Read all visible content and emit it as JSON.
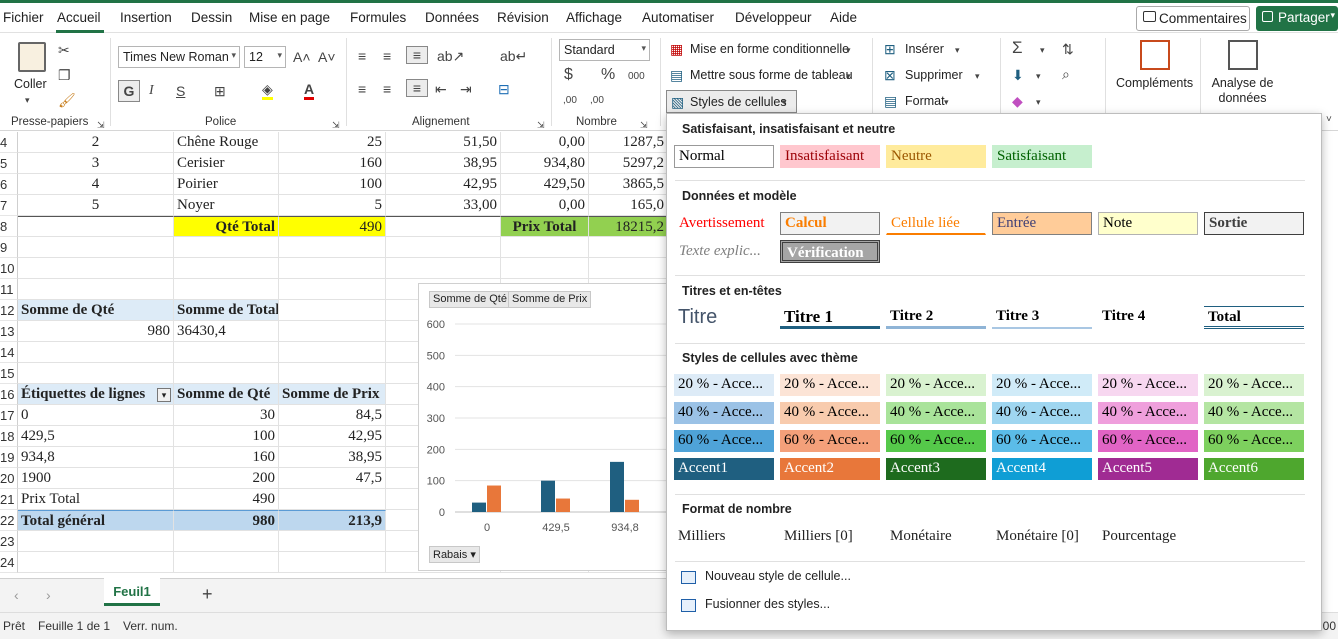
{
  "menubar": {
    "items": [
      "Fichier",
      "Accueil",
      "Insertion",
      "Dessin",
      "Mise en page",
      "Formules",
      "Données",
      "Révision",
      "Affichage",
      "Automatiser",
      "Développeur",
      "Aide"
    ],
    "comments_label": "Commentaires",
    "share_label": "Partager"
  },
  "ribbon": {
    "clipboard": {
      "paste_label": "Coller",
      "group_label": "Presse-papiers"
    },
    "font": {
      "name": "Times New Roman",
      "size": "12",
      "group_label": "Police",
      "bold": "G",
      "italic": "I",
      "underline": "S"
    },
    "alignment": {
      "group_label": "Alignement"
    },
    "number": {
      "format": "Standard",
      "group_label": "Nombre"
    },
    "styles": {
      "conditional": "Mise en forme conditionnelle",
      "as_table": "Mettre sous forme de tableau",
      "cell_styles": "Styles de cellules"
    },
    "cells": {
      "insert": "Insérer",
      "delete": "Supprimer",
      "format": "Format"
    },
    "addins": "Compléments",
    "analyze": "Analyse de données"
  },
  "sheet": {
    "rows": [
      {
        "num": "4",
        "cells": [
          "2",
          "Chêne Rouge",
          "25",
          "51,50",
          "0,00",
          "1287,5"
        ]
      },
      {
        "num": "5",
        "cells": [
          "3",
          "Cerisier",
          "160",
          "38,95",
          "934,80",
          "5297,2"
        ]
      },
      {
        "num": "6",
        "cells": [
          "4",
          "Poirier",
          "100",
          "42,95",
          "429,50",
          "3865,5"
        ]
      },
      {
        "num": "7",
        "cells": [
          "5",
          "Noyer",
          "5",
          "33,00",
          "0,00",
          "165,0"
        ]
      },
      {
        "num": "8",
        "cells": [
          "",
          "Qté Total",
          "490",
          "",
          "Prix Total",
          "18215,2"
        ]
      },
      {
        "num": "9",
        "cells": [
          "",
          "",
          "",
          "",
          "",
          ""
        ]
      },
      {
        "num": "10",
        "cells": [
          "",
          "",
          "",
          "",
          "",
          ""
        ]
      },
      {
        "num": "11",
        "cells": [
          "",
          "",
          "",
          "",
          "",
          ""
        ]
      },
      {
        "num": "12",
        "cells": [
          "Somme de Qté",
          "Somme de Total",
          "",
          "",
          "",
          ""
        ]
      },
      {
        "num": "13",
        "cells": [
          "980",
          "36430,4",
          "",
          "",
          "",
          ""
        ]
      },
      {
        "num": "14",
        "cells": [
          "",
          "",
          "",
          "",
          "",
          ""
        ]
      },
      {
        "num": "15",
        "cells": [
          "",
          "",
          "",
          "",
          "",
          ""
        ]
      },
      {
        "num": "16",
        "cells": [
          "Étiquettes de lignes",
          "Somme de Qté",
          "Somme de Prix",
          "",
          "",
          ""
        ]
      },
      {
        "num": "17",
        "cells": [
          "0",
          "30",
          "84,5",
          "",
          "",
          ""
        ]
      },
      {
        "num": "18",
        "cells": [
          "429,5",
          "100",
          "42,95",
          "",
          "",
          ""
        ]
      },
      {
        "num": "19",
        "cells": [
          "934,8",
          "160",
          "38,95",
          "",
          "",
          ""
        ]
      },
      {
        "num": "20",
        "cells": [
          "1900",
          "200",
          "47,5",
          "",
          "",
          ""
        ]
      },
      {
        "num": "21",
        "cells": [
          "Prix Total",
          "490",
          "",
          "",
          "",
          ""
        ]
      },
      {
        "num": "22",
        "cells": [
          "Total général",
          "980",
          "213,9",
          "",
          "",
          ""
        ]
      },
      {
        "num": "23",
        "cells": [
          "",
          "",
          "",
          "",
          "",
          ""
        ]
      },
      {
        "num": "24",
        "cells": [
          "",
          "",
          "",
          "",
          "",
          ""
        ]
      }
    ]
  },
  "chart_data": {
    "type": "bar",
    "categories": [
      "0",
      "429,5",
      "934,8"
    ],
    "series": [
      {
        "name": "Somme de Qté",
        "values": [
          30,
          100,
          160
        ],
        "color": "#1f5f80"
      },
      {
        "name": "Somme de Prix",
        "values": [
          84.5,
          42.95,
          38.95
        ],
        "color": "#e8773a"
      }
    ],
    "ylim": [
      0,
      600
    ],
    "yticks": [
      "600",
      "500",
      "400",
      "300",
      "200",
      "100",
      "0"
    ],
    "chips": [
      "Somme  de Qté",
      "Somme  de Prix"
    ],
    "filter_chip": "Rabais"
  },
  "tabs": {
    "sheet_name": "Feuil1"
  },
  "status": {
    "ready": "Prêt",
    "sheet_of": "Feuille 1 de 1",
    "numlock": "Verr. num.",
    "zoom": ".:00"
  },
  "panel": {
    "sections": [
      {
        "title": "Satisfaisant, insatisfaisant et neutre",
        "styles": [
          {
            "label": "Normal",
            "fg": "#000000",
            "bg": "#ffffff",
            "border": "#999999"
          },
          {
            "label": "Insatisfaisant",
            "fg": "#9c0006",
            "bg": "#ffc7ce",
            "border": "#ffc7ce"
          },
          {
            "label": "Neutre",
            "fg": "#9c5700",
            "bg": "#ffeb9c",
            "border": "#ffeb9c"
          },
          {
            "label": "Satisfaisant",
            "fg": "#006100",
            "bg": "#c6efce",
            "border": "#c6efce"
          }
        ]
      },
      {
        "title": "Données et modèle",
        "styles": [
          {
            "label": "Avertissement",
            "fg": "#ff0000",
            "bg": "#ffffff",
            "border": "#ffffff"
          },
          {
            "label": "Calcul",
            "fg": "#fa7d00",
            "bg": "#f2f2f2",
            "border": "#7f7f7f"
          },
          {
            "label": "Cellule liée",
            "fg": "#fa7d00",
            "bg": "#ffffff",
            "border": "#ffffff"
          },
          {
            "label": "Entrée",
            "fg": "#3f3f76",
            "bg": "#ffcc99",
            "border": "#7f7f7f"
          },
          {
            "label": "Note",
            "fg": "#000000",
            "bg": "#ffffcc",
            "border": "#b2b2b2"
          },
          {
            "label": "Sortie",
            "fg": "#3f3f3f",
            "bg": "#f2f2f2",
            "border": "#3f3f3f"
          },
          {
            "label": "Texte explic...",
            "fg": "#7f7f7f",
            "bg": "#ffffff",
            "border": "#ffffff"
          },
          {
            "label": "Vérification",
            "fg": "#ffffff",
            "bg": "#a5a5a5",
            "border": "#3f3f3f"
          }
        ]
      },
      {
        "title": "Titres et en-têtes",
        "styles": [
          {
            "label": "Titre",
            "fg": "#44546a"
          },
          {
            "label": "Titre 1",
            "fg": "#000000"
          },
          {
            "label": "Titre 2",
            "fg": "#000000"
          },
          {
            "label": "Titre 3",
            "fg": "#000000"
          },
          {
            "label": "Titre 4",
            "fg": "#000000"
          },
          {
            "label": "Total",
            "fg": "#000000"
          }
        ]
      },
      {
        "title": "Styles de cellules avec thème",
        "styles": [
          {
            "label": "20 % - Acce...",
            "bg": "#ddebf7",
            "fg": "#000000"
          },
          {
            "label": "20 % - Acce...",
            "bg": "#fce4d6",
            "fg": "#000000"
          },
          {
            "label": "20 % - Acce...",
            "bg": "#d9f2d0",
            "fg": "#000000"
          },
          {
            "label": "20 % - Acce...",
            "bg": "#d0ebf8",
            "fg": "#000000"
          },
          {
            "label": "20 % - Acce...",
            "bg": "#f7d7f0",
            "fg": "#000000"
          },
          {
            "label": "20 % - Acce...",
            "bg": "#d9f2d0",
            "fg": "#000000"
          },
          {
            "label": "40 % - Acce...",
            "bg": "#9bc2e6",
            "fg": "#000000"
          },
          {
            "label": "40 % - Acce...",
            "bg": "#f8cbad",
            "fg": "#000000"
          },
          {
            "label": "40 % - Acce...",
            "bg": "#a9e39a",
            "fg": "#000000"
          },
          {
            "label": "40 % - Acce...",
            "bg": "#9fd6f0",
            "fg": "#000000"
          },
          {
            "label": "40 % - Acce...",
            "bg": "#ef9fdc",
            "fg": "#000000"
          },
          {
            "label": "40 % - Acce...",
            "bg": "#b4e5a2",
            "fg": "#000000"
          },
          {
            "label": "60 % - Acce...",
            "bg": "#4fa3d8",
            "fg": "#000000"
          },
          {
            "label": "60 % - Acce...",
            "bg": "#f4a07a",
            "fg": "#000000"
          },
          {
            "label": "60 % - Acce...",
            "bg": "#55c94a",
            "fg": "#000000"
          },
          {
            "label": "60 % - Acce...",
            "bg": "#5bbce8",
            "fg": "#000000"
          },
          {
            "label": "60 % - Acce...",
            "bg": "#e164c5",
            "fg": "#000000"
          },
          {
            "label": "60 % - Acce...",
            "bg": "#7dd05e",
            "fg": "#000000"
          },
          {
            "label": "Accent1",
            "bg": "#1f5f80",
            "fg": "#ffffff"
          },
          {
            "label": "Accent2",
            "bg": "#e8773a",
            "fg": "#ffffff"
          },
          {
            "label": "Accent3",
            "bg": "#1e6b1e",
            "fg": "#ffffff"
          },
          {
            "label": "Accent4",
            "bg": "#0f9ed5",
            "fg": "#ffffff"
          },
          {
            "label": "Accent5",
            "bg": "#a02b93",
            "fg": "#ffffff"
          },
          {
            "label": "Accent6",
            "bg": "#4ea72e",
            "fg": "#ffffff"
          }
        ]
      },
      {
        "title": "Format de nombre",
        "styles": [
          {
            "label": "Milliers"
          },
          {
            "label": "Milliers [0]"
          },
          {
            "label": "Monétaire"
          },
          {
            "label": "Monétaire [0]"
          },
          {
            "label": "Pourcentage"
          }
        ]
      }
    ],
    "menu": [
      "Nouveau style de cellule...",
      "Fusionner des styles..."
    ]
  }
}
